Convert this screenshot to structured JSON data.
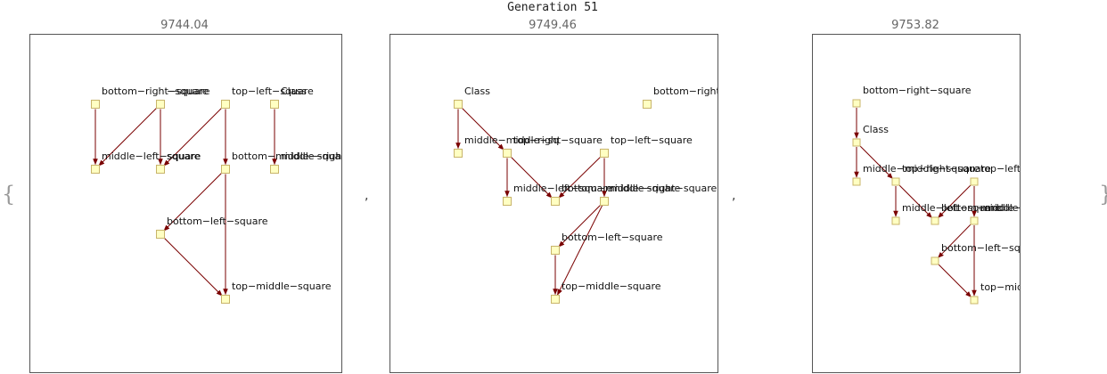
{
  "title": "Generation 51",
  "open_brace": "{",
  "close_brace": "}",
  "separator": ",",
  "colors": {
    "frame": "#555555",
    "edge": "#7a0000",
    "node_fill": "#ffffc2",
    "node_stroke": "#c8b46a"
  },
  "graphs": [
    {
      "score": "9744.04",
      "nodes": [
        {
          "id": "brs",
          "label": "bottom−right−square"
        },
        {
          "id": "rs",
          "label": "−square"
        },
        {
          "id": "tls",
          "label": "top−left−square"
        },
        {
          "id": "cls",
          "label": "Class"
        },
        {
          "id": "mls",
          "label": "middle−left−square"
        },
        {
          "id": "q",
          "label": "square"
        },
        {
          "id": "bms",
          "label": "bottom−middle−square"
        },
        {
          "id": "mid",
          "label": "middle−right−square−midd"
        },
        {
          "id": "bls",
          "label": "bottom−left−square"
        },
        {
          "id": "tms",
          "label": "top−middle−square"
        }
      ],
      "edges": [
        [
          "brs",
          "mls"
        ],
        [
          "rs",
          "q"
        ],
        [
          "rs",
          "mls"
        ],
        [
          "tls",
          "bms"
        ],
        [
          "tls",
          "q"
        ],
        [
          "cls",
          "mid"
        ],
        [
          "bms",
          "bls"
        ],
        [
          "bms",
          "tms"
        ],
        [
          "bls",
          "tms"
        ]
      ]
    },
    {
      "score": "9749.46",
      "nodes": [
        {
          "id": "cls",
          "label": "Class"
        },
        {
          "id": "brs",
          "label": "bottom−right"
        },
        {
          "id": "mms",
          "label": "middle−middle−sq"
        },
        {
          "id": "trs",
          "label": "top−right−square"
        },
        {
          "id": "tls",
          "label": "top−left−square"
        },
        {
          "id": "mls",
          "label": "middle−left−square"
        },
        {
          "id": "bms",
          "label": "bottom−middle−square"
        },
        {
          "id": "mrs",
          "label": "middle−right−square"
        },
        {
          "id": "bls",
          "label": "bottom−left−square"
        },
        {
          "id": "tms",
          "label": "top−middle−square"
        }
      ],
      "edges": [
        [
          "cls",
          "mms"
        ],
        [
          "cls",
          "trs"
        ],
        [
          "trs",
          "mls"
        ],
        [
          "trs",
          "bms"
        ],
        [
          "tls",
          "bms"
        ],
        [
          "tls",
          "mrs"
        ],
        [
          "mrs",
          "bls"
        ],
        [
          "mrs",
          "tms"
        ],
        [
          "bls",
          "tms"
        ]
      ]
    },
    {
      "score": "9753.82",
      "nodes": [
        {
          "id": "brs",
          "label": "bottom−right−square"
        },
        {
          "id": "cls",
          "label": "Class"
        },
        {
          "id": "mms",
          "label": "middle−middle−square"
        },
        {
          "id": "trs",
          "label": "top−right−square"
        },
        {
          "id": "tls",
          "label": "top−left−sq"
        },
        {
          "id": "mls",
          "label": "middle−left−square"
        },
        {
          "id": "bms",
          "label": "bottom−middle−sq"
        },
        {
          "id": "mrs",
          "label": "middle−right−sq"
        },
        {
          "id": "bls",
          "label": "bottom−left−squar"
        },
        {
          "id": "tms",
          "label": "top−middle"
        }
      ],
      "edges": [
        [
          "brs",
          "cls"
        ],
        [
          "cls",
          "mms"
        ],
        [
          "cls",
          "trs"
        ],
        [
          "trs",
          "mls"
        ],
        [
          "trs",
          "bms"
        ],
        [
          "tls",
          "bms"
        ],
        [
          "tls",
          "mrs"
        ],
        [
          "mrs",
          "bls"
        ],
        [
          "mrs",
          "tms"
        ],
        [
          "bls",
          "tms"
        ]
      ]
    }
  ]
}
